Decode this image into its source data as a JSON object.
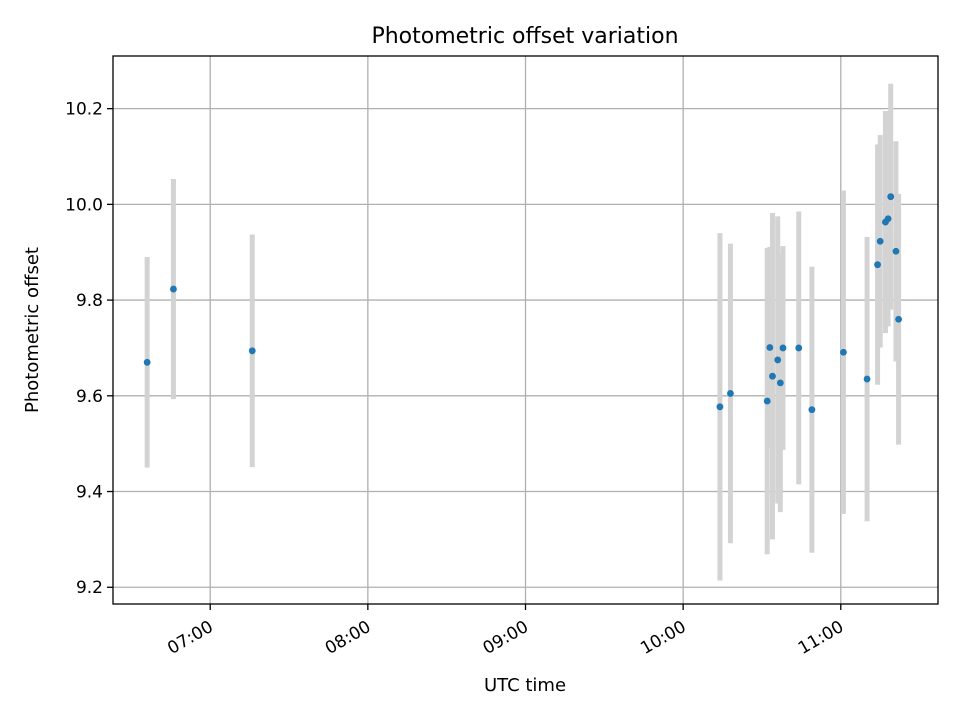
{
  "chart_data": {
    "type": "scatter",
    "title": "Photometric offset variation",
    "xlabel": "UTC time",
    "ylabel": "Photometric offset",
    "x_ticks": [
      "07:00",
      "08:00",
      "09:00",
      "10:00",
      "11:00"
    ],
    "y_ticks": [
      "9.2",
      "9.4",
      "9.6",
      "9.8",
      "10.0",
      "10.2"
    ],
    "xlim": [
      "06:23",
      "11:37"
    ],
    "ylim": [
      9.165,
      10.31
    ],
    "grid": true,
    "point_color": "#1f77b4",
    "errorbar_color": "#d3d3d3",
    "points": [
      {
        "x": "06:36",
        "y": 9.67,
        "err": 0.22
      },
      {
        "x": "06:46",
        "y": 9.823,
        "err": 0.23
      },
      {
        "x": "07:16",
        "y": 9.694,
        "err": 0.243
      },
      {
        "x": "10:14",
        "y": 9.577,
        "err": 0.363
      },
      {
        "x": "10:18",
        "y": 9.605,
        "err": 0.313
      },
      {
        "x": "10:32",
        "y": 9.589,
        "err": 0.32
      },
      {
        "x": "10:33",
        "y": 9.701,
        "err": 0.21
      },
      {
        "x": "10:34",
        "y": 9.641,
        "err": 0.341
      },
      {
        "x": "10:36",
        "y": 9.675,
        "err": 0.3
      },
      {
        "x": "10:37",
        "y": 9.627,
        "err": 0.27
      },
      {
        "x": "10:38",
        "y": 9.7,
        "err": 0.213
      },
      {
        "x": "10:44",
        "y": 9.7,
        "err": 0.285
      },
      {
        "x": "10:49",
        "y": 9.571,
        "err": 0.299
      },
      {
        "x": "11:01",
        "y": 9.691,
        "err": 0.338
      },
      {
        "x": "11:10",
        "y": 9.635,
        "err": 0.297
      },
      {
        "x": "11:14",
        "y": 9.874,
        "err": 0.251
      },
      {
        "x": "11:15",
        "y": 9.923,
        "err": 0.222
      },
      {
        "x": "11:17",
        "y": 9.963,
        "err": 0.232
      },
      {
        "x": "11:18",
        "y": 9.97,
        "err": 0.225
      },
      {
        "x": "11:19",
        "y": 10.016,
        "err": 0.236
      },
      {
        "x": "11:21",
        "y": 9.902,
        "err": 0.23
      },
      {
        "x": "11:22",
        "y": 9.76,
        "err": 0.262
      }
    ]
  }
}
